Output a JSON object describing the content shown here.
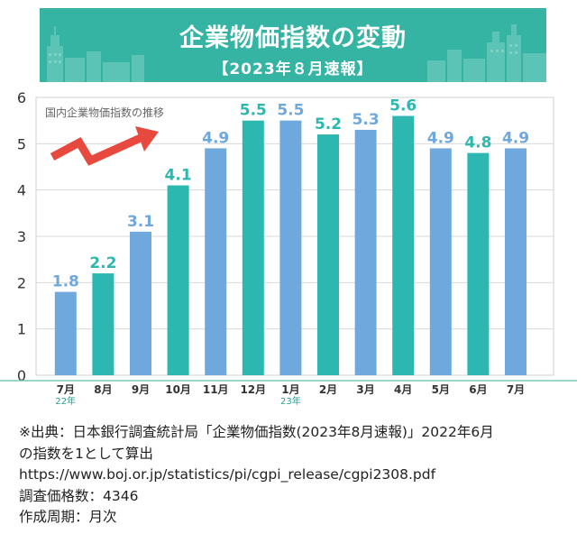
{
  "banner": {
    "title": "企業物価指数の変動",
    "subtitle": "【2023年８月速報】"
  },
  "colors": {
    "banner_bg": "#35b3a3",
    "bar_blue": "#6fa8dc",
    "bar_teal": "#2cb8b0",
    "arrow": "#e8493f",
    "grid": "#d9d9d9",
    "axis_line": "#7fc6bd"
  },
  "chart_data": {
    "type": "bar",
    "title": "国内企業物価指数の推移",
    "categories": [
      "7月",
      "8月",
      "9月",
      "10月",
      "11月",
      "12月",
      "1月",
      "2月",
      "3月",
      "4月",
      "5月",
      "6月",
      "7月"
    ],
    "year_labels": [
      {
        "index": 0,
        "label": "22年"
      },
      {
        "index": 6,
        "label": "23年"
      }
    ],
    "values": [
      1.8,
      2.2,
      3.1,
      4.1,
      4.9,
      5.5,
      5.5,
      5.2,
      5.3,
      5.6,
      4.9,
      4.8,
      4.9
    ],
    "value_labels": [
      "1.8",
      "2.2",
      "3.1",
      "4.1",
      "4.9",
      "5.5",
      "5.5",
      "5.2",
      "5.3",
      "5.6",
      "4.9",
      "4.8",
      "4.9"
    ],
    "bar_colors": [
      "blue",
      "teal",
      "blue",
      "teal",
      "blue",
      "teal",
      "blue",
      "teal",
      "blue",
      "teal",
      "blue",
      "teal",
      "blue"
    ],
    "yticks": [
      0,
      1,
      2,
      3,
      4,
      5,
      6
    ],
    "ylim": [
      0,
      6
    ],
    "grid": true,
    "arrow_icon": "upward-trend-arrow-icon"
  },
  "notes": [
    "※出典：日本銀行調査統計局「企業物価指数(2023年8月速報)」2022年6月",
    "の指数を1として算出",
    "https://www.boj.or.jp/statistics/pi/cgpi_release/cgpi2308.pdf",
    "調査価格数：4346",
    "作成周期：月次"
  ]
}
